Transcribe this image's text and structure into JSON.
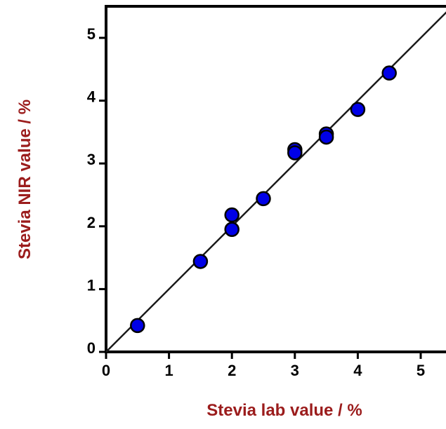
{
  "chart_data": {
    "type": "scatter",
    "title": "",
    "xlabel": "Stevia lab value / %",
    "ylabel": "Stevia NIR value / %",
    "xlim": [
      0,
      5.5
    ],
    "ylim": [
      0,
      5.5
    ],
    "x_ticks": [
      "0",
      "1",
      "2",
      "3",
      "4",
      "5"
    ],
    "y_ticks": [
      "0",
      "1",
      "2",
      "3",
      "4",
      "5"
    ],
    "grid": false,
    "points": [
      {
        "x": 0.5,
        "y": 0.42
      },
      {
        "x": 1.5,
        "y": 1.44
      },
      {
        "x": 2.0,
        "y": 2.18
      },
      {
        "x": 2.0,
        "y": 1.95
      },
      {
        "x": 2.5,
        "y": 2.44
      },
      {
        "x": 3.0,
        "y": 3.22
      },
      {
        "x": 3.0,
        "y": 3.17
      },
      {
        "x": 3.5,
        "y": 3.47
      },
      {
        "x": 3.5,
        "y": 3.42
      },
      {
        "x": 4.0,
        "y": 3.86
      },
      {
        "x": 4.5,
        "y": 4.44
      }
    ],
    "reference_line": {
      "from": [
        0,
        0
      ],
      "to": [
        5.5,
        5.5
      ]
    },
    "colors": {
      "point_fill": "#0000e6",
      "point_stroke": "#000000",
      "axis_label": "#9b1c1c",
      "line": "#1a1a1a"
    }
  }
}
